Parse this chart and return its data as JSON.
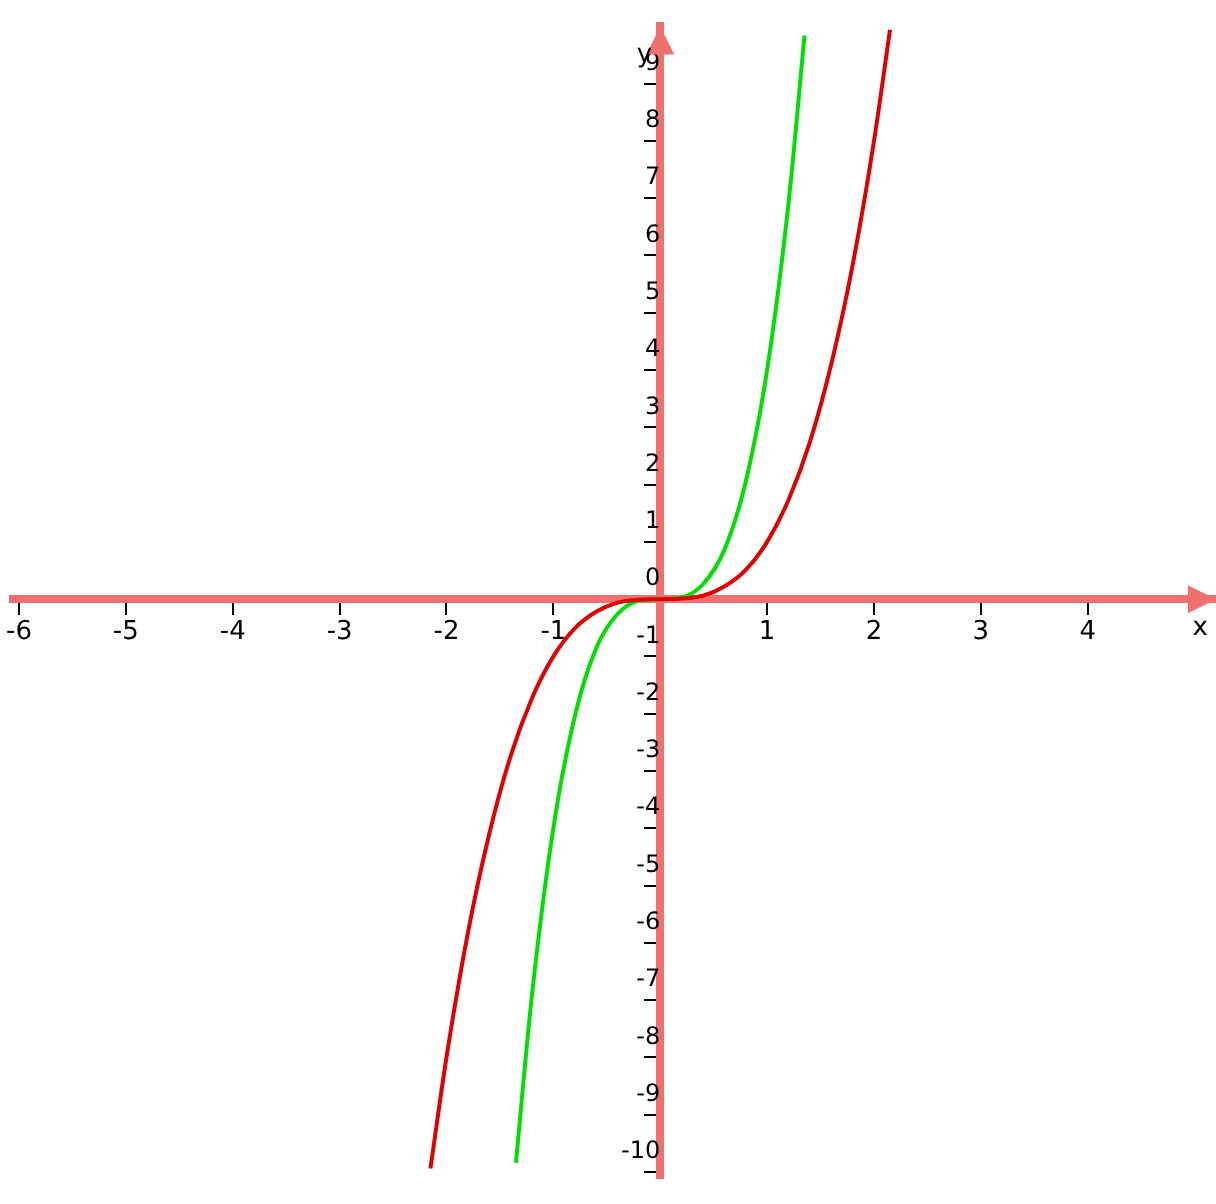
{
  "chart_data": {
    "type": "line",
    "xlabel": "x",
    "ylabel": "y",
    "xlim": [
      -6.06,
      5.2
    ],
    "ylim": [
      -10.1,
      10
    ],
    "xticks": [
      -6,
      -5,
      -4,
      -3,
      -2,
      -1,
      {
        "value": 0,
        "label": null
      },
      1,
      2,
      3,
      4
    ],
    "yticks": [
      -10,
      -9,
      -8,
      -7,
      -6,
      -5,
      -4,
      -3,
      -2,
      -1,
      0,
      1,
      2,
      3,
      4,
      5,
      6,
      7,
      8,
      9
    ],
    "marker": "none",
    "series": [
      {
        "color": "#e00000",
        "x": [
          -2.15,
          -2,
          -1.8,
          -1.6,
          -1.4,
          -1.2,
          -1,
          -0.8,
          -0.6,
          -0.4,
          -0.2,
          0,
          0.2,
          0.4,
          0.6,
          0.8,
          1,
          1.2,
          1.4,
          1.6,
          1.8,
          2,
          2.15
        ],
        "values": [
          -9.94,
          -8,
          -5.83,
          -4.1,
          -2.74,
          -1.73,
          -1,
          -0.51,
          -0.22,
          -0.06,
          -0.01,
          0,
          0.01,
          0.06,
          0.22,
          0.51,
          1,
          1.73,
          2.74,
          4.1,
          5.83,
          8,
          9.94
        ]
      },
      {
        "color": "#00e000",
        "x": [
          -1.35,
          -1.2,
          -1,
          -0.8,
          -0.6,
          -0.4,
          -0.2,
          0,
          0.2,
          0.4,
          0.6,
          0.8,
          1,
          1.2,
          1.35
        ],
        "values": [
          -9.84,
          -6.91,
          -4,
          -2.05,
          -0.86,
          -0.26,
          -0.03,
          0,
          0.03,
          0.26,
          0.86,
          2.05,
          4,
          6.91,
          9.84
        ]
      }
    ]
  }
}
